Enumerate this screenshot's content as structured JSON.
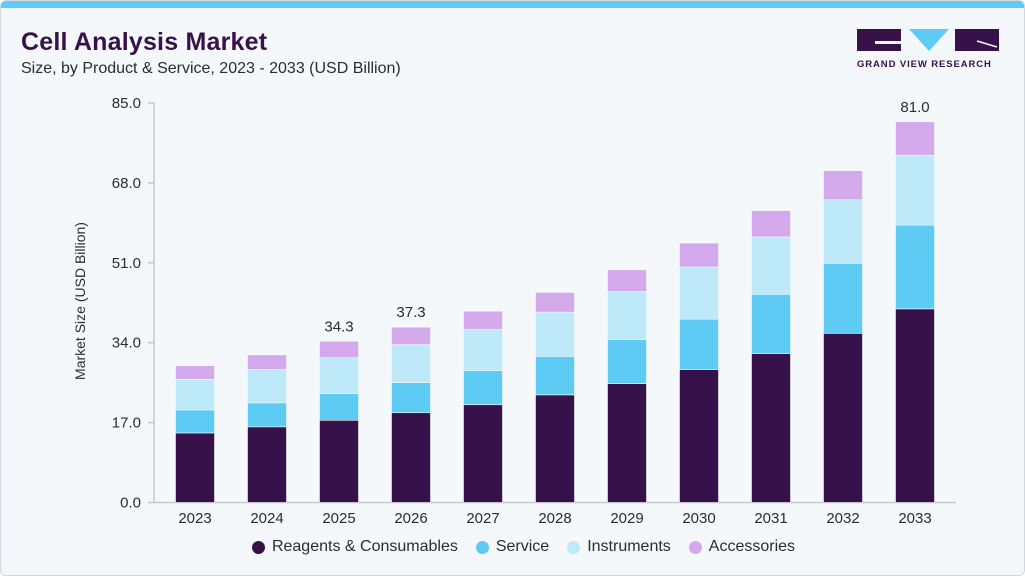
{
  "header": {
    "title": "Cell Analysis Market",
    "subtitle": "Size, by Product & Service, 2023 - 2033 (USD Billion)"
  },
  "logo": {
    "text": "GRAND VIEW RESEARCH",
    "colors": {
      "dark": "#37114a",
      "accent": "#5ecbf5"
    }
  },
  "chart_data": {
    "type": "bar",
    "stacked": true,
    "title": "Cell Analysis Market",
    "subtitle": "Size, by Product & Service, 2023 - 2033 (USD Billion)",
    "xlabel": "",
    "ylabel": "Market Size (USD Billion)",
    "ylim": [
      0,
      85
    ],
    "yticks": [
      "0.0",
      "17.0",
      "34.0",
      "51.0",
      "68.0",
      "85.0"
    ],
    "grid": false,
    "legend_position": "bottom",
    "categories": [
      "2023",
      "2024",
      "2025",
      "2026",
      "2027",
      "2028",
      "2029",
      "2030",
      "2031",
      "2032",
      "2033"
    ],
    "series": [
      {
        "name": "Reagents & Consumables",
        "color": "#37114a",
        "values": [
          14.8,
          16.1,
          17.5,
          19.1,
          20.8,
          22.9,
          25.3,
          28.3,
          31.7,
          36.0,
          41.2
        ]
      },
      {
        "name": "Service",
        "color": "#5ecbf5",
        "values": [
          4.9,
          5.1,
          5.7,
          6.4,
          7.3,
          8.2,
          9.4,
          10.7,
          12.6,
          14.9,
          17.8
        ]
      },
      {
        "name": "Instruments",
        "color": "#bde9f9",
        "values": [
          6.5,
          7.1,
          7.6,
          8.1,
          8.7,
          9.4,
          10.2,
          11.1,
          12.2,
          13.5,
          14.9
        ]
      },
      {
        "name": "Accessories",
        "color": "#d3a9ec",
        "values": [
          2.9,
          3.1,
          3.5,
          3.7,
          3.9,
          4.2,
          4.6,
          5.1,
          5.6,
          6.2,
          7.1
        ]
      }
    ],
    "data_labels": [
      {
        "category": "2025",
        "text": "34.3"
      },
      {
        "category": "2026",
        "text": "37.3"
      },
      {
        "category": "2033",
        "text": "81.0"
      }
    ]
  }
}
